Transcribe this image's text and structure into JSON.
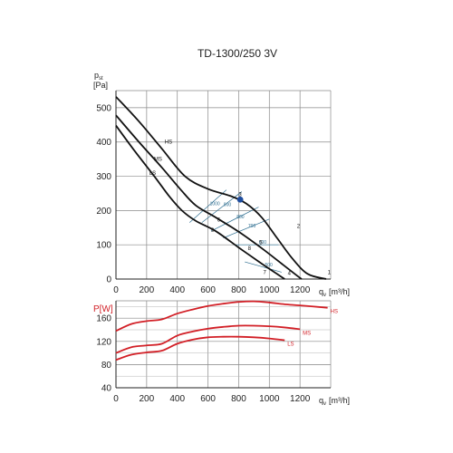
{
  "title": "TD-1300/250 3V",
  "chart_data": [
    {
      "type": "line",
      "ylabel_main": "p",
      "ylabel_sub": "st",
      "yunit": "[Pa]",
      "xlabel_main": "q",
      "xlabel_sub": "v",
      "xunit": "[m³/h]",
      "xlim": [
        0,
        1400
      ],
      "ylim": [
        0,
        550
      ],
      "x_ticks": [
        0,
        200,
        400,
        600,
        800,
        1000,
        1200
      ],
      "y_ticks": [
        0,
        100,
        200,
        300,
        400,
        500
      ],
      "grid": true,
      "series": [
        {
          "name": "HS",
          "color": "#111111",
          "points": [
            [
              0,
              532
            ],
            [
              150,
              460
            ],
            [
              300,
              380
            ],
            [
              450,
              300
            ],
            [
              600,
              263
            ],
            [
              750,
              242
            ],
            [
              850,
              220
            ],
            [
              950,
              180
            ],
            [
              1050,
              120
            ],
            [
              1150,
              60
            ],
            [
              1250,
              15
            ],
            [
              1370,
              0
            ]
          ]
        },
        {
          "name": "MS",
          "color": "#111111",
          "points": [
            [
              0,
              478
            ],
            [
              150,
              400
            ],
            [
              300,
              325
            ],
            [
              420,
              262
            ],
            [
              520,
              215
            ],
            [
              650,
              180
            ],
            [
              800,
              138
            ],
            [
              950,
              90
            ],
            [
              1080,
              45
            ],
            [
              1180,
              10
            ],
            [
              1210,
              0
            ]
          ]
        },
        {
          "name": "LS",
          "color": "#111111",
          "points": [
            [
              0,
              448
            ],
            [
              120,
              375
            ],
            [
              250,
              300
            ],
            [
              350,
              240
            ],
            [
              430,
              200
            ],
            [
              520,
              170
            ],
            [
              650,
              140
            ],
            [
              800,
              92
            ],
            [
              950,
              45
            ],
            [
              1060,
              12
            ],
            [
              1100,
              0
            ]
          ]
        }
      ],
      "rpm_lines": [
        {
          "label": "1000",
          "points": [
            [
              480,
              165
            ],
            [
              720,
              260
            ]
          ]
        },
        {
          "label": "900",
          "points": [
            [
              560,
              165
            ],
            [
              820,
              255
            ]
          ]
        },
        {
          "label": "800",
          "points": [
            [
              620,
              140
            ],
            [
              930,
              210
            ]
          ]
        },
        {
          "label": "700",
          "points": [
            [
              700,
              120
            ],
            [
              1000,
              175
            ]
          ]
        },
        {
          "label": "600",
          "points": [
            [
              780,
              100
            ],
            [
              1060,
              100
            ]
          ]
        },
        {
          "label": "500",
          "points": [
            [
              840,
              50
            ],
            [
              1080,
              20
            ]
          ]
        }
      ],
      "operating_point": {
        "x": 810,
        "y": 232,
        "color": "#1f4d9e"
      },
      "point_labels": [
        {
          "label": "1",
          "x": 1380,
          "y": 15
        },
        {
          "label": "2",
          "x": 1180,
          "y": 150
        },
        {
          "label": "3",
          "x": 800,
          "y": 242
        },
        {
          "label": "4",
          "x": 1120,
          "y": 12
        },
        {
          "label": "5",
          "x": 935,
          "y": 102
        },
        {
          "label": "6",
          "x": 660,
          "y": 168
        },
        {
          "label": "7",
          "x": 960,
          "y": 15
        },
        {
          "label": "8",
          "x": 860,
          "y": 85
        },
        {
          "label": "9",
          "x": 620,
          "y": 138
        }
      ]
    },
    {
      "type": "line",
      "ylabel": "P[W]",
      "xlabel_main": "q",
      "xlabel_sub": "v",
      "xunit": "[m³/h]",
      "xlim": [
        0,
        1400
      ],
      "ylim": [
        40,
        190
      ],
      "x_ticks": [
        0,
        200,
        400,
        600,
        800,
        1000,
        1200
      ],
      "y_ticks": [
        40,
        80,
        120,
        160
      ],
      "grid": true,
      "series": [
        {
          "name": "HS",
          "color": "#d21f26",
          "points": [
            [
              0,
              138
            ],
            [
              100,
              150
            ],
            [
              200,
              155
            ],
            [
              300,
              158
            ],
            [
              400,
              168
            ],
            [
              500,
              175
            ],
            [
              600,
              181
            ],
            [
              700,
              185
            ],
            [
              800,
              188
            ],
            [
              900,
              189
            ],
            [
              1000,
              187
            ],
            [
              1100,
              184
            ],
            [
              1200,
              182
            ],
            [
              1380,
              178
            ]
          ]
        },
        {
          "name": "MS",
          "color": "#d21f26",
          "points": [
            [
              0,
              100
            ],
            [
              100,
              110
            ],
            [
              200,
              113
            ],
            [
              300,
              116
            ],
            [
              400,
              130
            ],
            [
              500,
              137
            ],
            [
              600,
              142
            ],
            [
              700,
              145
            ],
            [
              800,
              147
            ],
            [
              900,
              147
            ],
            [
              1000,
              146
            ],
            [
              1100,
              144
            ],
            [
              1200,
              141
            ]
          ]
        },
        {
          "name": "LS",
          "color": "#d21f26",
          "points": [
            [
              0,
              88
            ],
            [
              100,
              97
            ],
            [
              200,
              101
            ],
            [
              300,
              104
            ],
            [
              400,
              116
            ],
            [
              500,
              123
            ],
            [
              600,
              127
            ],
            [
              700,
              128
            ],
            [
              800,
              128
            ],
            [
              900,
              127
            ],
            [
              1000,
              125
            ],
            [
              1100,
              122
            ]
          ]
        }
      ]
    }
  ]
}
